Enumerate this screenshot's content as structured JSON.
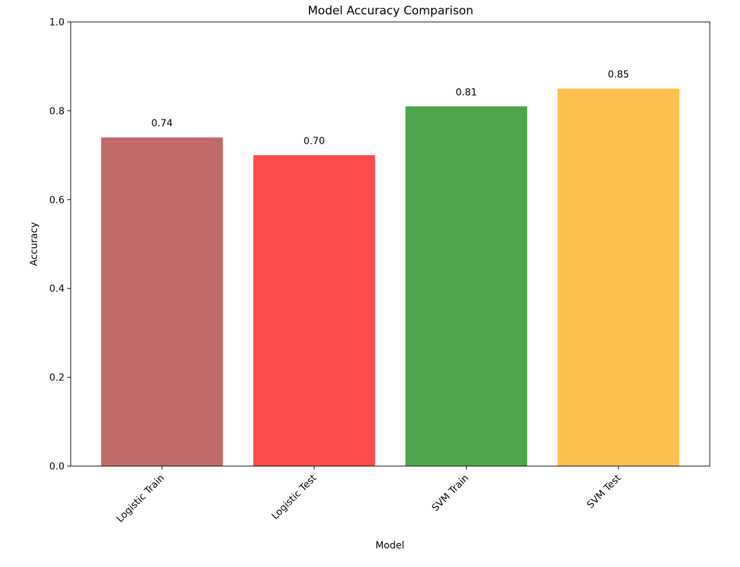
{
  "chart_data": {
    "type": "bar",
    "title": "Model Accuracy Comparison",
    "xlabel": "Model",
    "ylabel": "Accuracy",
    "categories": [
      "Logistic Train",
      "Logistic Test",
      "SVM Train",
      "SVM Test"
    ],
    "values": [
      0.74,
      0.7,
      0.81,
      0.85
    ],
    "value_labels": [
      "0.74",
      "0.70",
      "0.81",
      "0.85"
    ],
    "colors": [
      "#bf6a69",
      "#ff4c4c",
      "#4da64d",
      "#ffbf4f"
    ],
    "ylim": [
      0,
      1.0
    ],
    "yticks": [
      0.0,
      0.2,
      0.4,
      0.6,
      0.8,
      1.0
    ],
    "ytick_labels": [
      "0.0",
      "0.2",
      "0.4",
      "0.6",
      "0.8",
      "1.0"
    ],
    "xtick_rotation": 45,
    "grid": false,
    "legend": "none"
  }
}
